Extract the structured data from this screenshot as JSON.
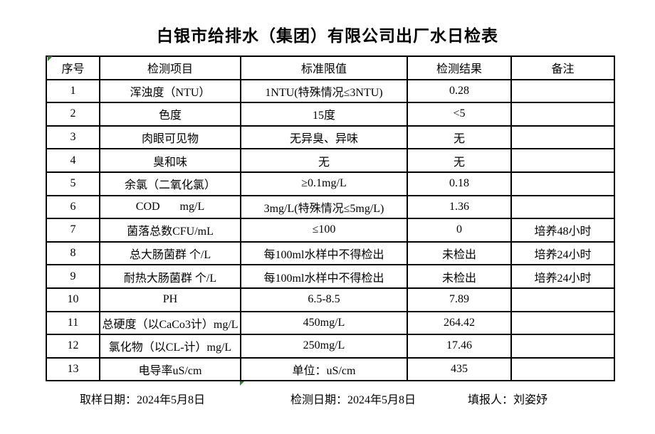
{
  "title": "白银市给排水（集团）有限公司出厂水日检表",
  "table": {
    "headers": [
      "序号",
      "检测项目",
      "标准限值",
      "检测结果",
      "备注"
    ],
    "rows": [
      [
        "1",
        "浑浊度（NTU）",
        "1NTU(特殊情况≤3NTU)",
        "0.28",
        ""
      ],
      [
        "2",
        "色度",
        "15度",
        "<5",
        ""
      ],
      [
        "3",
        "肉眼可见物",
        "无异臭、异味",
        "无",
        ""
      ],
      [
        "4",
        "臭和味",
        "无",
        "无",
        ""
      ],
      [
        "5",
        "余氯（二氧化氯）",
        "≥0.1mg/L",
        "0.18",
        ""
      ],
      [
        "6",
        "COD       mg/L",
        "3mg/L(特殊情况≤5mg/L)",
        "1.36",
        ""
      ],
      [
        "7",
        "菌落总数CFU/mL",
        "≤100",
        "0",
        "培养48小时"
      ],
      [
        "8",
        "总大肠菌群 个/L",
        "每100ml水样中不得检出",
        "未检出",
        "培养24小时"
      ],
      [
        "9",
        "耐热大肠菌群 个/L",
        "每100ml水样中不得检出",
        "未检出",
        "培养24小时"
      ],
      [
        "10",
        "PH",
        "6.5-8.5",
        "7.89",
        ""
      ],
      [
        "11",
        "总硬度（以CaCo3计）mg/L",
        "450mg/L",
        "264.42",
        ""
      ],
      [
        "12",
        "氯化物（以CL-计）mg/L",
        "250mg/L",
        "17.46",
        ""
      ],
      [
        "13",
        "电导率uS/cm",
        "单位：uS/cm",
        "435",
        ""
      ]
    ]
  },
  "footer": {
    "sampling_date": "取样日期：2024年5月8日",
    "test_date": "检测日期：2024年5月8日",
    "reporter": "填报人：刘姿妤"
  },
  "colors": {
    "background": "#ffffff",
    "border": "#000000",
    "text": "#000000",
    "excel_marker_green": "#2e7d32"
  },
  "icons": {
    "excel_error_indicator": "green corner triangle"
  }
}
